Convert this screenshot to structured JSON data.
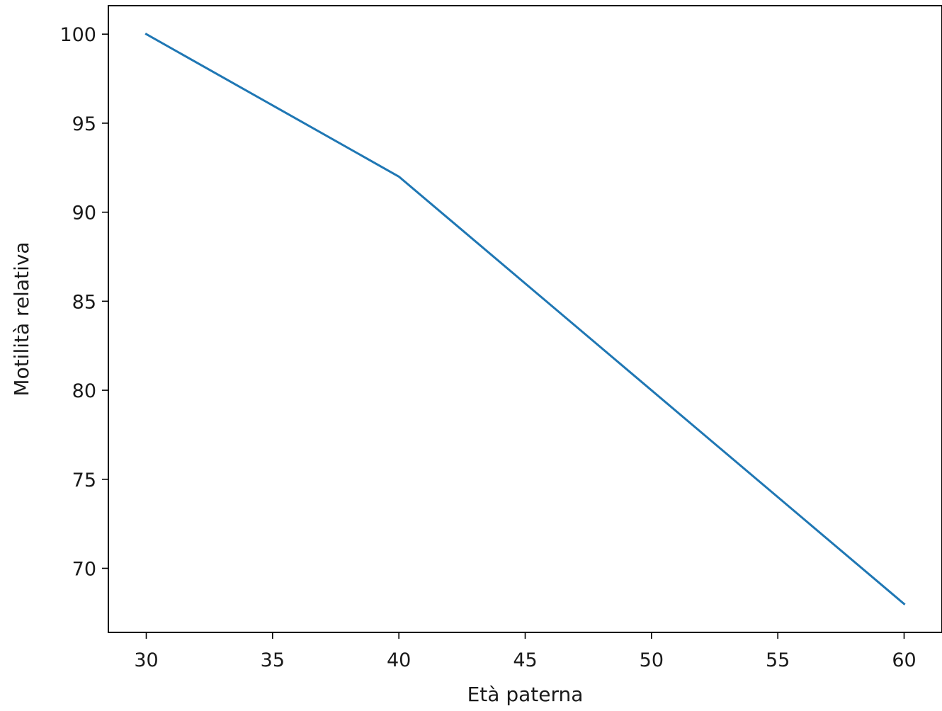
{
  "chart_data": {
    "type": "line",
    "title": "",
    "xlabel": "Età paterna",
    "ylabel": "Motilità relativa",
    "x": [
      30,
      40,
      60
    ],
    "series": [
      {
        "values": [
          100,
          92,
          68
        ],
        "color": "#1f77b4"
      }
    ],
    "xlim": [
      28.5,
      61.5
    ],
    "ylim": [
      66.4,
      101.6
    ],
    "xticks": [
      30,
      35,
      40,
      45,
      50,
      55,
      60
    ],
    "yticks": [
      70,
      75,
      80,
      85,
      90,
      95,
      100
    ],
    "grid": false,
    "legend": "none"
  }
}
